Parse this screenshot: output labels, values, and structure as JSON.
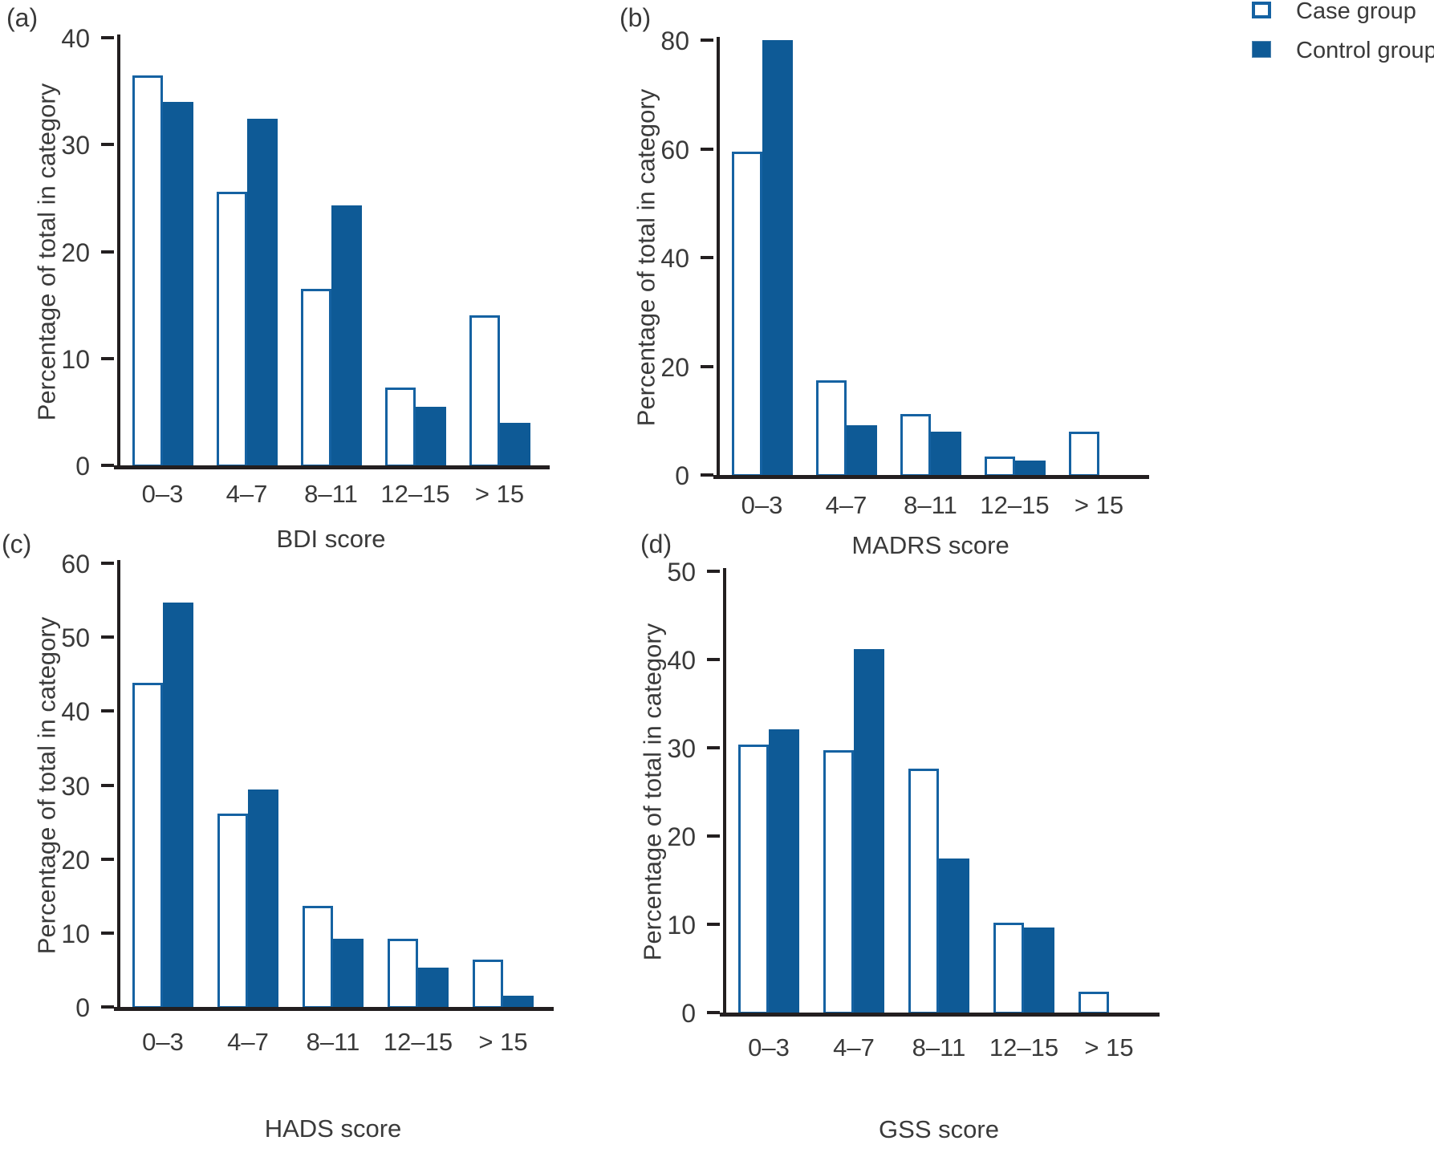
{
  "figure": {
    "ylabel": "Percentage of total in category",
    "categories": [
      "0–3",
      "4–7",
      "8–11",
      "12–15",
      "> 15"
    ]
  },
  "legend": {
    "items": [
      {
        "label": "Case group",
        "style": "outline"
      },
      {
        "label": "Control group",
        "style": "solid"
      }
    ]
  },
  "colors": {
    "control_fill": "#0e5a96",
    "case_outline": "#1562a2",
    "axis": "#231f20",
    "text": "#3a3a3a"
  },
  "chart_data": [
    {
      "type": "bar",
      "panel": "(a)",
      "title": "",
      "xlabel": "BDI score",
      "ylabel": "Percentage of total in category",
      "ylim": [
        0,
        40
      ],
      "ytick_step": 10,
      "grid": false,
      "legend_position": "figure-top-right",
      "categories": [
        "0–3",
        "4–7",
        "8–11",
        "12–15",
        "> 15"
      ],
      "series": [
        {
          "name": "Case group",
          "values": [
            36.5,
            25.6,
            16.5,
            7.3,
            14.0
          ]
        },
        {
          "name": "Control group",
          "values": [
            34.0,
            32.4,
            24.3,
            5.5,
            4.0
          ]
        }
      ]
    },
    {
      "type": "bar",
      "panel": "(b)",
      "title": "",
      "xlabel": "MADRS score",
      "ylabel": "Percentage of total in category",
      "ylim": [
        0,
        80
      ],
      "ytick_step": 20,
      "grid": false,
      "legend_position": "figure-top-right",
      "categories": [
        "0–3",
        "4–7",
        "8–11",
        "12–15",
        "> 15"
      ],
      "series": [
        {
          "name": "Case group",
          "values": [
            59.5,
            17.4,
            11.2,
            3.4,
            7.9
          ]
        },
        {
          "name": "Control group",
          "values": [
            80.0,
            9.1,
            8.0,
            2.7,
            0
          ]
        }
      ]
    },
    {
      "type": "bar",
      "panel": "(c)",
      "title": "",
      "xlabel": "HADS score",
      "ylabel": "Percentage of total in category",
      "ylim": [
        0,
        60
      ],
      "ytick_step": 10,
      "grid": false,
      "legend_position": "figure-top-right",
      "categories": [
        "0–3",
        "4–7",
        "8–11",
        "12–15",
        "> 15"
      ],
      "series": [
        {
          "name": "Case group",
          "values": [
            43.8,
            26.2,
            13.7,
            9.2,
            6.4
          ]
        },
        {
          "name": "Control group",
          "values": [
            54.7,
            29.4,
            9.2,
            5.3,
            1.5
          ]
        }
      ]
    },
    {
      "type": "bar",
      "panel": "(d)",
      "title": "",
      "xlabel": "GSS score",
      "ylabel": "Percentage of total in category",
      "ylim": [
        0,
        50
      ],
      "ytick_step": 10,
      "grid": false,
      "legend_position": "figure-top-right",
      "categories": [
        "0–3",
        "4–7",
        "8–11",
        "12–15",
        "> 15"
      ],
      "series": [
        {
          "name": "Case group",
          "values": [
            30.4,
            29.7,
            27.6,
            10.2,
            2.4
          ]
        },
        {
          "name": "Control group",
          "values": [
            32.1,
            41.2,
            17.5,
            9.6,
            0
          ]
        }
      ]
    }
  ]
}
